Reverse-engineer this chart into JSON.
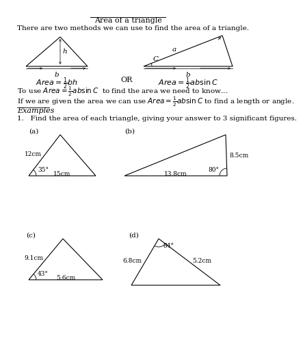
{
  "title": "Area of a triangle",
  "bg_color": "#ffffff",
  "text_color": "#000000",
  "font_size": 7.5,
  "line1": "There are two methods we can use to find the area of a triangle.",
  "examples_label": "Examples",
  "problem1": "1.   Find the area of each triangle, giving your answer to 3 significant figures.",
  "tri_a_label": "(a)",
  "tri_a_sides": [
    "12cm",
    "15cm"
  ],
  "tri_a_angle": "35°",
  "tri_b_label": "(b)",
  "tri_b_sides": [
    "8.5cm",
    "13.8cm"
  ],
  "tri_b_angle": "80°",
  "tri_c_label": "(c)",
  "tri_c_sides": [
    "9.1cm",
    "5.6cm"
  ],
  "tri_c_angle": "43°",
  "tri_d_label": "(d)",
  "tri_d_sides": [
    "6.8cm",
    "5.2cm"
  ],
  "tri_d_angle": "84°"
}
